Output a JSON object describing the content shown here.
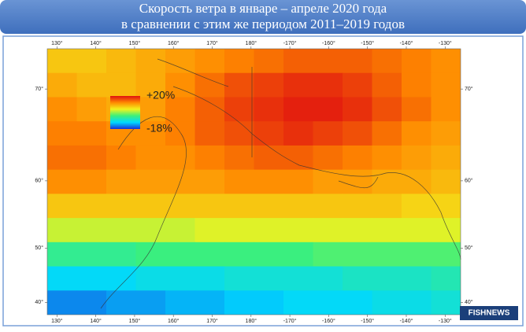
{
  "chart_data": {
    "type": "heatmap-map",
    "title": [
      "Скорость ветра в январе – апреле 2020 года",
      "в сравнении с этим же периодом 2011–2019 годов"
    ],
    "projection": "mercator",
    "xlim": [
      127.5,
      -126
    ],
    "ylim": [
      37.5,
      73.3
    ],
    "xticks": [
      {
        "value": 130,
        "label": "130°"
      },
      {
        "value": 140,
        "label": "140°"
      },
      {
        "value": 150,
        "label": "150°"
      },
      {
        "value": 160,
        "label": "160°"
      },
      {
        "value": 170,
        "label": "170°"
      },
      {
        "value": 180,
        "label": "180°"
      },
      {
        "value": -170,
        "label": "-170°"
      },
      {
        "value": -160,
        "label": "-160°"
      },
      {
        "value": -150,
        "label": "-150°"
      },
      {
        "value": -140,
        "label": "-140°"
      },
      {
        "value": -130,
        "label": "-130°"
      }
    ],
    "yticks": [
      {
        "value": 40,
        "label": "40°"
      },
      {
        "value": 50,
        "label": "50°"
      },
      {
        "value": 60,
        "label": "60°"
      },
      {
        "value": 70,
        "label": "70°"
      }
    ],
    "colorscale": [
      "#1a2fd8",
      "#00d8ff",
      "#3cf07c",
      "#f2f21e",
      "#ff8a00",
      "#e01010"
    ],
    "legend": [
      {
        "value": 20,
        "label": "+20%"
      },
      {
        "value": -18,
        "label": "-18%"
      }
    ],
    "values": [
      [
        8,
        8,
        9,
        10,
        11,
        12,
        13,
        14,
        15,
        15,
        15,
        14,
        13,
        12
      ],
      [
        10,
        9,
        9,
        10,
        12,
        14,
        16,
        17,
        18,
        18,
        17,
        15,
        13,
        12
      ],
      [
        12,
        11,
        10,
        11,
        13,
        15,
        17,
        18,
        19,
        19,
        18,
        16,
        14,
        12
      ],
      [
        13,
        13,
        12,
        12,
        13,
        15,
        16,
        17,
        18,
        17,
        16,
        14,
        12,
        11
      ],
      [
        14,
        14,
        13,
        12,
        12,
        13,
        14,
        15,
        15,
        14,
        13,
        12,
        11,
        10
      ],
      [
        12,
        12,
        11,
        11,
        11,
        11,
        12,
        12,
        12,
        11,
        11,
        10,
        10,
        9
      ],
      [
        8,
        8,
        8,
        8,
        8,
        8,
        8,
        8,
        8,
        8,
        8,
        8,
        7,
        7
      ],
      [
        3,
        3,
        3,
        3,
        3,
        4,
        4,
        4,
        4,
        4,
        4,
        4,
        4,
        4
      ],
      [
        -4,
        -4,
        -4,
        -3,
        -3,
        -3,
        -3,
        -3,
        -3,
        -2,
        -2,
        -2,
        -2,
        -2
      ],
      [
        -10,
        -10,
        -10,
        -9,
        -9,
        -9,
        -8,
        -8,
        -8,
        -8,
        -7,
        -7,
        -7,
        -6
      ],
      [
        -14,
        -14,
        -13,
        -13,
        -12,
        -12,
        -11,
        -11,
        -10,
        -10,
        -10,
        -9,
        -9,
        -8
      ]
    ],
    "watermark": "FISHNEWS"
  }
}
